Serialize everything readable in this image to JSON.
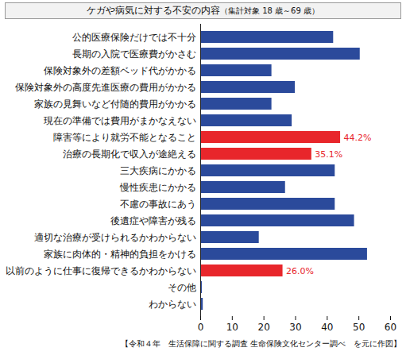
{
  "chart_data": {
    "type": "bar",
    "orientation": "horizontal",
    "title": "ケガや病気に対する不安の内容",
    "subtitle": "（集計対象 18 歳～69 歳）",
    "caption": "【令和４年　生活保障に関する調査 生命保険文化センター調べ　を元に作図】",
    "categories": [
      "公的医療保険だけでは不十分",
      "長期の入院で医療費がかさむ",
      "保険対象外の差額ベッド代がかかる",
      "保険対象外の高度先進医療の費用がかかる",
      "家族の見舞いなど付随的費用がかかる",
      "現在の準備では費用がまかなえない",
      "障害等により就労不能となること",
      "治療の長期化で収入が途絶える",
      "三大疾病にかかる",
      "慢性疾患にかかる",
      "不慮の事故にあう",
      "後遺症や障害が残る",
      "適切な治療が受けられるかわからない",
      "家族に肉体的・精神的負担をかける",
      "以前のように仕事に復帰できるかわからない",
      "その他",
      "わからない"
    ],
    "values": [
      42.0,
      50.4,
      22.5,
      29.9,
      22.5,
      28.9,
      44.2,
      35.1,
      42.5,
      26.8,
      42.5,
      48.6,
      18.5,
      52.7,
      26.0,
      0.5,
      0.8
    ],
    "value_labels": [
      null,
      null,
      null,
      null,
      null,
      null,
      "44.2%",
      "35.1%",
      null,
      null,
      null,
      null,
      null,
      null,
      "26.0%",
      null,
      null
    ],
    "colors": [
      "#2b4a9b",
      "#2b4a9b",
      "#2b4a9b",
      "#2b4a9b",
      "#2b4a9b",
      "#2b4a9b",
      "#e8262b",
      "#e8262b",
      "#2b4a9b",
      "#2b4a9b",
      "#2b4a9b",
      "#2b4a9b",
      "#2b4a9b",
      "#2b4a9b",
      "#e8262b",
      "#2b4a9b",
      "#2b4a9b"
    ],
    "xlim": [
      0,
      60
    ],
    "xticks": [
      0,
      10,
      20,
      30,
      40,
      50,
      60
    ],
    "grid": false
  }
}
